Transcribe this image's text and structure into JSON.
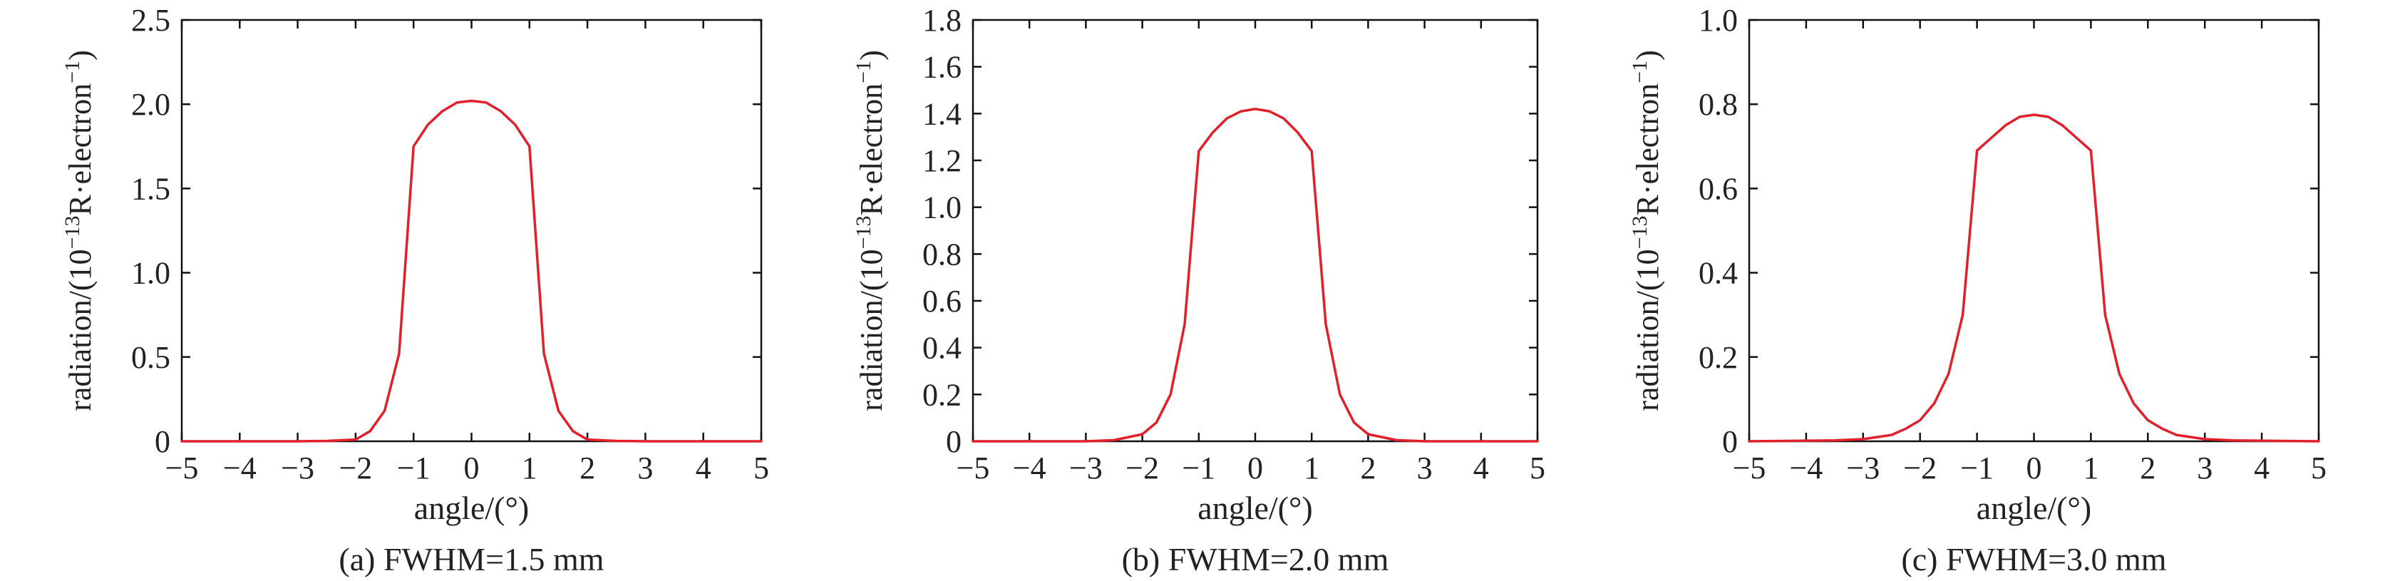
{
  "colors": {
    "series": "#e0202a",
    "axis": "#111111"
  },
  "chart_data": [
    {
      "type": "line",
      "caption": "(a) FWHM=1.5 mm",
      "xlabel": "angle/(°)",
      "ylabel": {
        "text": "radiation/(10",
        "sup1": "−13",
        "mid": "R·electron",
        "sup2": "−1",
        "end": ")"
      },
      "xlim": [
        -5,
        5
      ],
      "ylim": [
        0,
        2.5
      ],
      "xticks": [
        -5,
        -4,
        -3,
        -2,
        -1,
        0,
        1,
        2,
        3,
        4,
        5
      ],
      "xtick_labels": [
        "−5",
        "−4",
        "−3",
        "−2",
        "−1",
        "0",
        "1",
        "2",
        "3",
        "4",
        "5"
      ],
      "yticks": [
        0,
        0.5,
        1.0,
        1.5,
        2.0,
        2.5
      ],
      "ytick_labels": [
        "0",
        "0.5",
        "1.0",
        "1.5",
        "2.0",
        "2.5"
      ],
      "grid": false,
      "series": [
        {
          "x": [
            -5,
            -3,
            -2.5,
            -2,
            -1.75,
            -1.5,
            -1.25,
            -1,
            -0.75,
            -0.5,
            -0.25,
            0,
            0.25,
            0.5,
            0.75,
            1,
            1.25,
            1.5,
            1.75,
            2,
            2.5,
            3,
            5
          ],
          "y": [
            0,
            0,
            0.002,
            0.01,
            0.06,
            0.18,
            0.52,
            1.75,
            1.88,
            1.96,
            2.01,
            2.02,
            2.01,
            1.96,
            1.88,
            1.75,
            0.52,
            0.18,
            0.06,
            0.01,
            0.002,
            0,
            0
          ]
        }
      ]
    },
    {
      "type": "line",
      "caption": "(b) FWHM=2.0 mm",
      "xlabel": "angle/(°)",
      "ylabel": {
        "text": "radiation/(10",
        "sup1": "−13",
        "mid": "R·electron",
        "sup2": "−1",
        "end": ")"
      },
      "xlim": [
        -5,
        5
      ],
      "ylim": [
        0,
        1.8
      ],
      "xticks": [
        -5,
        -4,
        -3,
        -2,
        -1,
        0,
        1,
        2,
        3,
        4,
        5
      ],
      "xtick_labels": [
        "−5",
        "−4",
        "−3",
        "−2",
        "−1",
        "0",
        "1",
        "2",
        "3",
        "4",
        "5"
      ],
      "yticks": [
        0,
        0.2,
        0.4,
        0.6,
        0.8,
        1.0,
        1.2,
        1.4,
        1.6,
        1.8
      ],
      "ytick_labels": [
        "0",
        "0.2",
        "0.4",
        "0.6",
        "0.8",
        "1.0",
        "1.2",
        "1.4",
        "1.6",
        "1.8"
      ],
      "grid": false,
      "series": [
        {
          "x": [
            -5,
            -3,
            -2.5,
            -2,
            -1.75,
            -1.5,
            -1.25,
            -1,
            -0.75,
            -0.5,
            -0.25,
            0,
            0.25,
            0.5,
            0.75,
            1,
            1.25,
            1.5,
            1.75,
            2,
            2.5,
            3,
            5
          ],
          "y": [
            0,
            0,
            0.005,
            0.03,
            0.08,
            0.2,
            0.5,
            1.24,
            1.32,
            1.38,
            1.41,
            1.42,
            1.41,
            1.38,
            1.32,
            1.24,
            0.5,
            0.2,
            0.08,
            0.03,
            0.005,
            0,
            0
          ]
        }
      ]
    },
    {
      "type": "line",
      "caption": "(c) FWHM=3.0 mm",
      "xlabel": "angle/(°)",
      "ylabel": {
        "text": "radiation/(10",
        "sup1": "−13",
        "mid": "R·electron",
        "sup2": "−1",
        "end": ")"
      },
      "xlim": [
        -5,
        5
      ],
      "ylim": [
        0,
        1.0
      ],
      "xticks": [
        -5,
        -4,
        -3,
        -2,
        -1,
        0,
        1,
        2,
        3,
        4,
        5
      ],
      "xtick_labels": [
        "−5",
        "−4",
        "−3",
        "−2",
        "−1",
        "0",
        "1",
        "2",
        "3",
        "4",
        "5"
      ],
      "yticks": [
        0,
        0.2,
        0.4,
        0.6,
        0.8,
        1.0
      ],
      "ytick_labels": [
        "0",
        "0.2",
        "0.4",
        "0.6",
        "0.8",
        "1.0"
      ],
      "grid": false,
      "series": [
        {
          "x": [
            -5,
            -3.5,
            -3,
            -2.5,
            -2.25,
            -2,
            -1.75,
            -1.5,
            -1.25,
            -1,
            -0.75,
            -0.5,
            -0.25,
            0,
            0.25,
            0.5,
            0.75,
            1,
            1.25,
            1.5,
            1.75,
            2,
            2.25,
            2.5,
            3,
            3.5,
            5
          ],
          "y": [
            0,
            0.002,
            0.005,
            0.015,
            0.03,
            0.05,
            0.09,
            0.16,
            0.3,
            0.69,
            0.72,
            0.75,
            0.77,
            0.775,
            0.77,
            0.75,
            0.72,
            0.69,
            0.3,
            0.16,
            0.09,
            0.05,
            0.03,
            0.015,
            0.005,
            0.002,
            0
          ]
        }
      ]
    }
  ]
}
